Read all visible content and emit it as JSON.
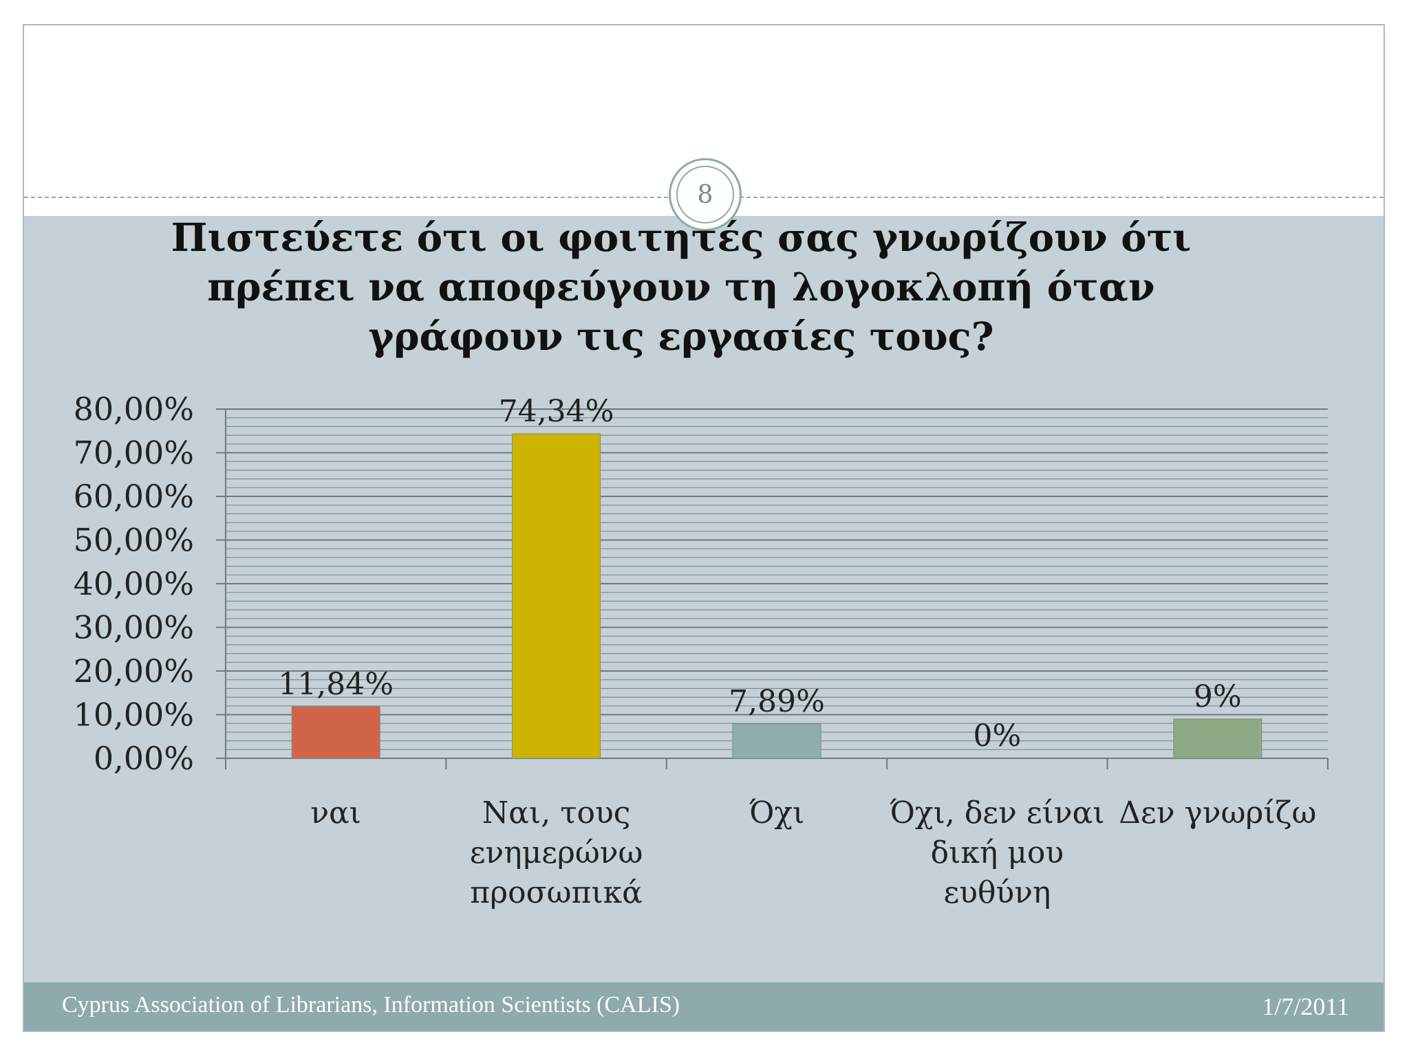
{
  "slide": {
    "page_number": "8",
    "title_lines": [
      "Πιστεύετε ότι οι φοιτητές σας γνωρίζουν ότι",
      "πρέπει να αποφεύγουν τη λογοκλοπή όταν",
      "γράφουν τις εργασίες τους?"
    ]
  },
  "footer": {
    "organization": "Cyprus Association of Librarians, Information Scientists (CALIS)",
    "date": "1/7/2011"
  },
  "colors": {
    "body_background": "#c5d1d6",
    "footer_background": "#8eaaaa",
    "gridline": "#7f8c8f",
    "bars": [
      "#d2644a",
      "#ccb400",
      "#8fadad",
      "#a9b49b",
      "#8ea985"
    ]
  },
  "chart_data": {
    "type": "bar",
    "title": "Πιστεύετε ότι οι φοιτητές σας γνωρίζουν ότι πρέπει να αποφεύγουν τη λογοκλοπή όταν γράφουν τις εργασίες τους?",
    "categories": [
      [
        "ναι"
      ],
      [
        "Ναι, τους",
        "ενημερώνω",
        "προσωπικά"
      ],
      [
        "Όχι"
      ],
      [
        "Όχι, δεν είναι",
        "δική μου",
        "ευθύνη"
      ],
      [
        "Δεν γνωρίζω"
      ]
    ],
    "values": [
      11.84,
      74.34,
      7.89,
      0,
      9
    ],
    "value_labels": [
      "11,84%",
      "74,34%",
      "7,89%",
      "0%",
      "9%"
    ],
    "ylim": [
      0,
      80
    ],
    "yticks": [
      0,
      10,
      20,
      30,
      40,
      50,
      60,
      70,
      80
    ],
    "ytick_labels": [
      "0,00%",
      "10,00%",
      "20,00%",
      "30,00%",
      "40,00%",
      "50,00%",
      "60,00%",
      "70,00%",
      "80,00%"
    ],
    "minor_grid_step": 2,
    "grid": true,
    "legend": "none",
    "xlabel": "",
    "ylabel": ""
  }
}
